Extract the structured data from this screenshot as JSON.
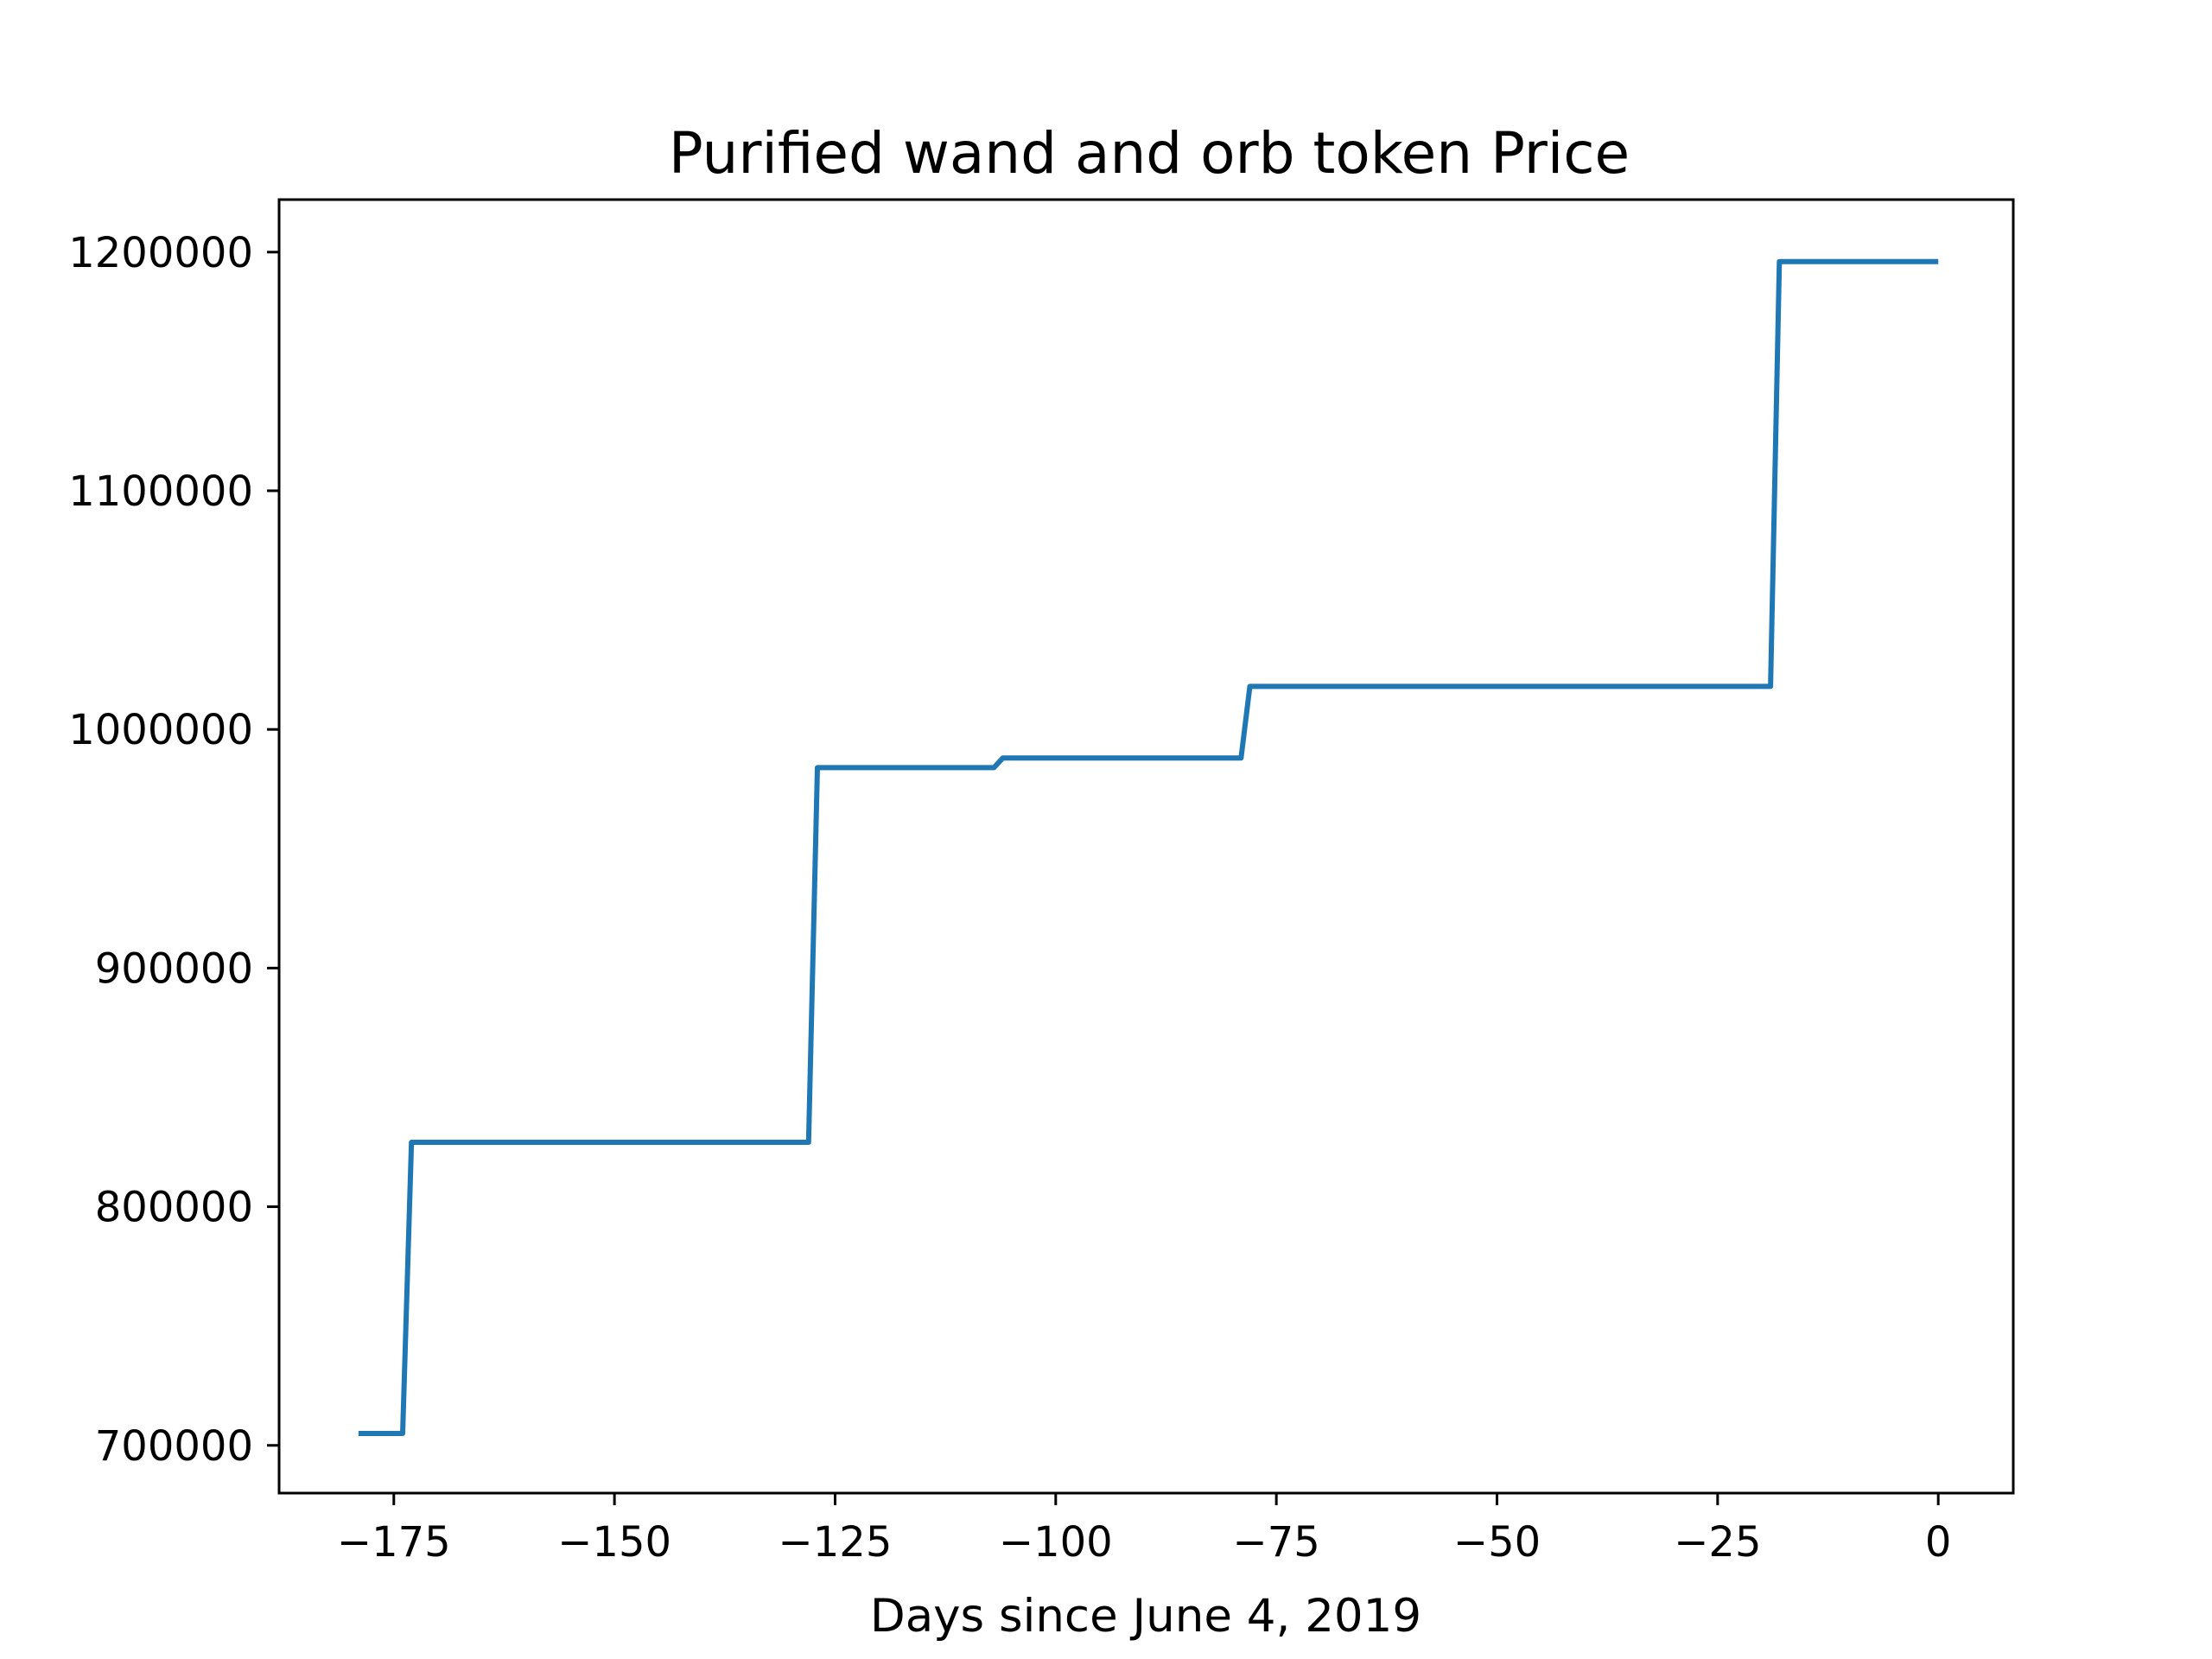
{
  "chart_data": {
    "type": "line",
    "title": "Purified wand and orb token Price",
    "xlabel": "Days since June 4, 2019",
    "ylabel": "",
    "xlim": [
      -188,
      8.5
    ],
    "ylim": [
      680000,
      1222000
    ],
    "x_ticks": [
      -175,
      -150,
      -125,
      -100,
      -75,
      -50,
      -25,
      0
    ],
    "x_tick_labels": [
      "−175",
      "−150",
      "−125",
      "−100",
      "−75",
      "−50",
      "−25",
      "0"
    ],
    "y_ticks": [
      700000,
      800000,
      900000,
      1000000,
      1100000,
      1200000
    ],
    "y_tick_labels": [
      "700000",
      "800000",
      "900000",
      "1000000",
      "1100000",
      "1200000"
    ],
    "grid": false,
    "series": [
      {
        "name": "",
        "color": "#1f77b4",
        "x": [
          -179,
          -174,
          -173,
          -128,
          -127,
          -107,
          -106,
          -79,
          -78,
          -19,
          -18,
          0
        ],
        "y": [
          705000,
          705000,
          827000,
          827000,
          984000,
          984000,
          988000,
          988000,
          1018000,
          1018000,
          1196000,
          1196000
        ]
      }
    ]
  }
}
